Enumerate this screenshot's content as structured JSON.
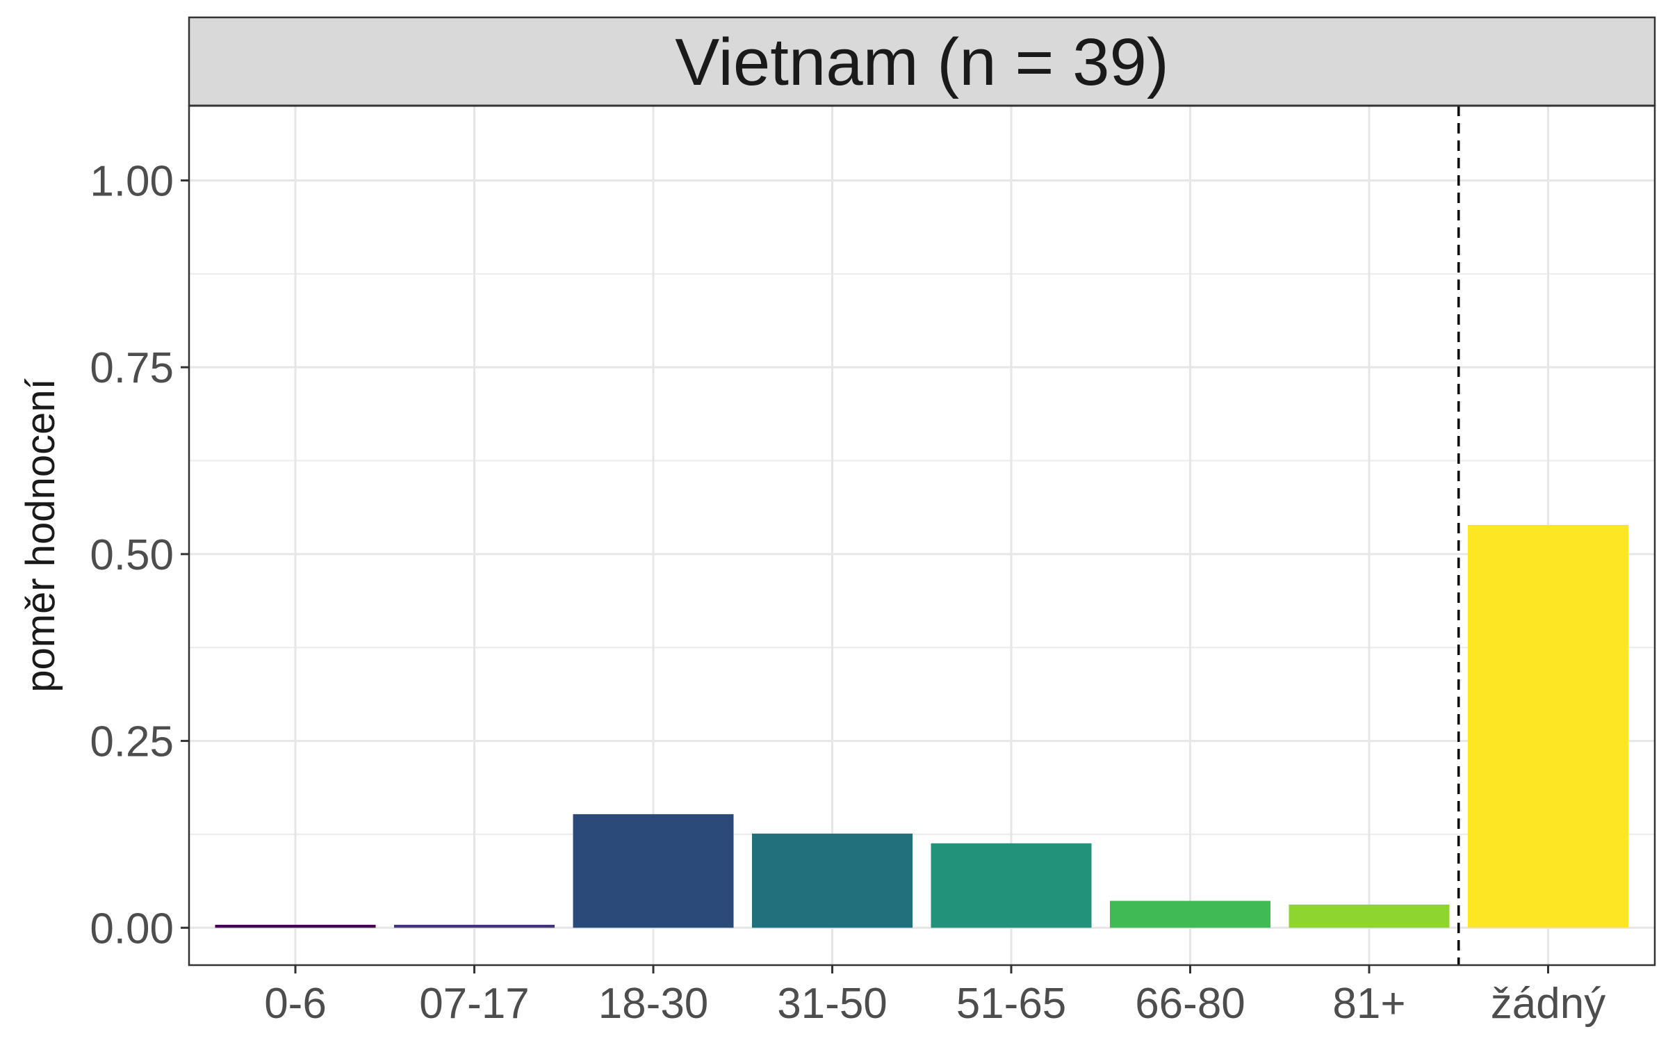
{
  "chart_data": {
    "type": "bar",
    "facet_title": "Vietnam (n = 39)",
    "ylabel": "poměr hodnocení",
    "xlabel": "",
    "categories": [
      "0-6",
      "07-17",
      "18-30",
      "31-50",
      "51-65",
      "66-80",
      "81+",
      "žádný"
    ],
    "values": [
      0.004,
      0.004,
      0.152,
      0.126,
      0.113,
      0.036,
      0.031,
      0.539
    ],
    "colors": [
      "#440154",
      "#46337E",
      "#2B4A7A",
      "#21707C",
      "#22937A",
      "#40BA55",
      "#8ED52F",
      "#FDE725"
    ],
    "ylim": [
      -0.05,
      1.1
    ],
    "yticks": [
      0,
      0.25,
      0.5,
      0.75,
      1.0
    ],
    "ytick_labels": [
      "0.00",
      "0.25",
      "0.50",
      "0.75",
      "1.00"
    ],
    "reference_line": {
      "style": "dashed",
      "between_categories": [
        "81+",
        "žádný"
      ],
      "color": "#000000"
    },
    "grid": true,
    "legend": "none"
  }
}
